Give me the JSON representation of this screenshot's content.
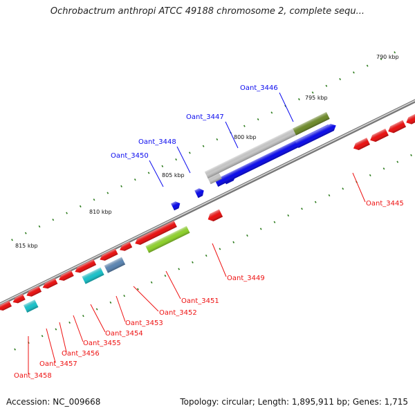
{
  "title": "Ochrobactrum anthropi ATCC 49188 chromosome 2, complete sequ...",
  "footer": {
    "accession": "Accession: NC_009668",
    "topology": "Topology: circular; Length: 1,895,911 bp; Genes: 1,715"
  },
  "scale_labels": [
    "790 kbp",
    "795 kbp",
    "800 kbp",
    "805 kbp",
    "810 kbp",
    "815 kbp"
  ],
  "colors": {
    "forward": "#0a0aee",
    "reverse": "#ee1010",
    "cyan": "#18c4cc",
    "olive": "#6f8c2a",
    "lime": "#8fd42a",
    "gray": "#c8c8c8",
    "steel": "#5b86b4",
    "backbone": "#888888",
    "tick": "#2a7a1a"
  },
  "genes": [
    {
      "label": "Oant_3446",
      "strand": "forward"
    },
    {
      "label": "Oant_3447",
      "strand": "forward"
    },
    {
      "label": "Oant_3448",
      "strand": "forward"
    },
    {
      "label": "Oant_3450",
      "strand": "forward"
    },
    {
      "label": "Oant_3445",
      "strand": "reverse"
    },
    {
      "label": "Oant_3449",
      "strand": "reverse"
    },
    {
      "label": "Oant_3451",
      "strand": "reverse"
    },
    {
      "label": "Oant_3452",
      "strand": "reverse"
    },
    {
      "label": "Oant_3453",
      "strand": "reverse"
    },
    {
      "label": "Oant_3454",
      "strand": "reverse"
    },
    {
      "label": "Oant_3455",
      "strand": "reverse"
    },
    {
      "label": "Oant_3456",
      "strand": "reverse"
    },
    {
      "label": "Oant_3457",
      "strand": "reverse"
    },
    {
      "label": "Oant_3458",
      "strand": "reverse"
    }
  ]
}
